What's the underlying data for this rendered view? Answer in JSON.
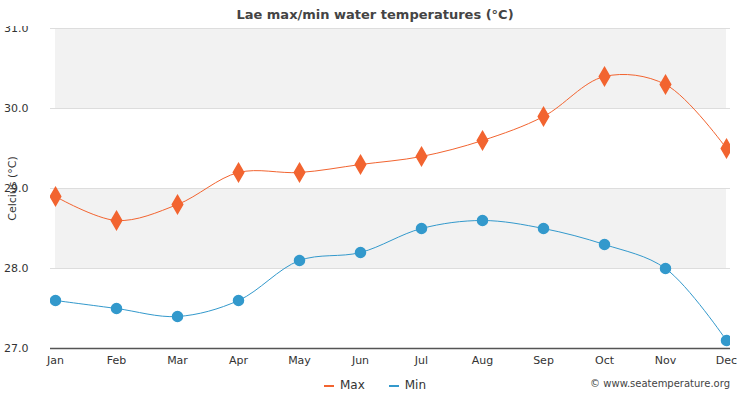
{
  "chart_data": {
    "type": "line",
    "title": "Lae max/min water temperatures (°C)",
    "y_label": "Celcius (°C)",
    "caption": "© www.seatemperature.org",
    "categories": [
      "Jan",
      "Feb",
      "Mar",
      "Apr",
      "May",
      "Jun",
      "Jul",
      "Aug",
      "Sep",
      "Oct",
      "Nov",
      "Dec"
    ],
    "series": [
      {
        "name": "Max",
        "color": "#f26430",
        "marker": "diamond",
        "values": [
          28.9,
          28.6,
          28.8,
          29.2,
          29.2,
          29.3,
          29.4,
          29.6,
          29.9,
          30.4,
          30.3,
          29.5
        ]
      },
      {
        "name": "Min",
        "color": "#3399cc",
        "marker": "circle",
        "values": [
          27.6,
          27.5,
          27.4,
          27.6,
          28.1,
          28.2,
          28.5,
          28.6,
          28.5,
          28.3,
          28.0,
          27.1
        ]
      }
    ],
    "ylim": [
      27,
      31
    ],
    "yticks": [
      27,
      28,
      29,
      30,
      31
    ],
    "grid": true,
    "legend": "bottom"
  }
}
